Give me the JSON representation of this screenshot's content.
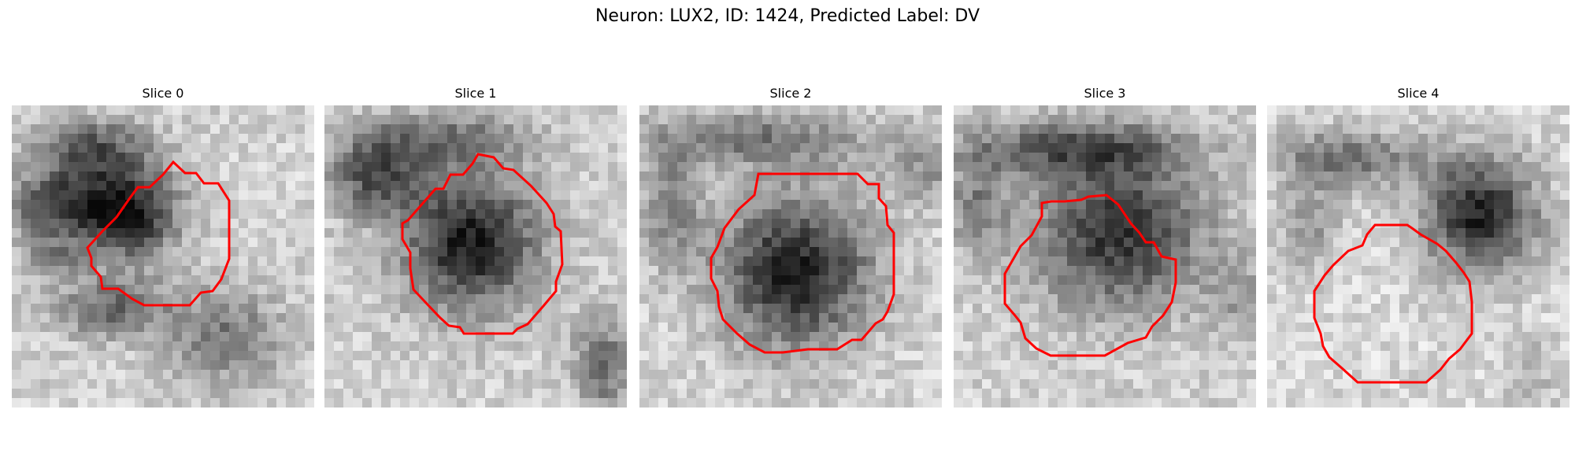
{
  "figure": {
    "title": "Neuron: LUX2, ID: 1424, Predicted Label: DV"
  },
  "panels": [
    {
      "title": "Slice 0"
    },
    {
      "title": "Slice 1"
    },
    {
      "title": "Slice 2"
    },
    {
      "title": "Slice 3"
    },
    {
      "title": "Slice 4"
    }
  ],
  "colors": {
    "contour": "#ff0000",
    "background": "#ffffff"
  }
}
